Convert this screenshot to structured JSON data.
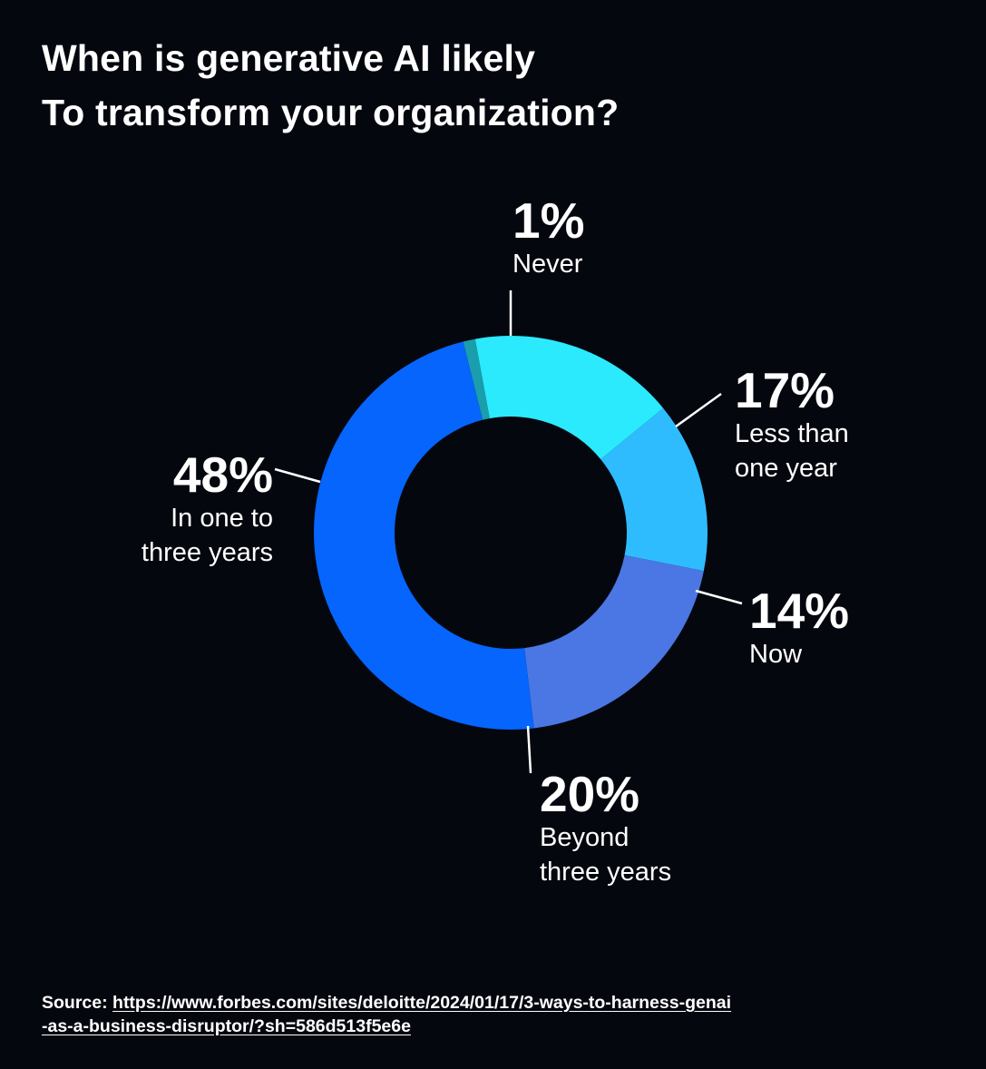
{
  "chart_data": {
    "type": "pie",
    "title": "When is generative AI likely To transform your organization?",
    "title_lines": [
      "When is generative AI likely",
      "To transform your organization?"
    ],
    "donut": true,
    "slices": [
      {
        "label": "Never",
        "value": 1,
        "value_label": "1%",
        "color": "#1a9dad"
      },
      {
        "label": "Less than one year",
        "label_lines": "Less than\none year",
        "value": 17,
        "value_label": "17%",
        "color": "#2beafd"
      },
      {
        "label": "Now",
        "value": 14,
        "value_label": "14%",
        "color": "#2fbcfe"
      },
      {
        "label": "Beyond three years",
        "label_lines": "Beyond\nthree years",
        "value": 20,
        "value_label": "20%",
        "color": "#4a77e3"
      },
      {
        "label": "In one to three years",
        "label_lines": "In one to\nthree years",
        "value": 48,
        "value_label": "48%",
        "color": "#0565fd"
      }
    ]
  },
  "source": {
    "prefix": "Source: ",
    "url_line1": "https://www.forbes.com/sites/deloitte/2024/01/17/3-ways-to-harness-genai",
    "url_line2": "-as-a-business-disruptor/?sh=586d513f5e6e"
  }
}
